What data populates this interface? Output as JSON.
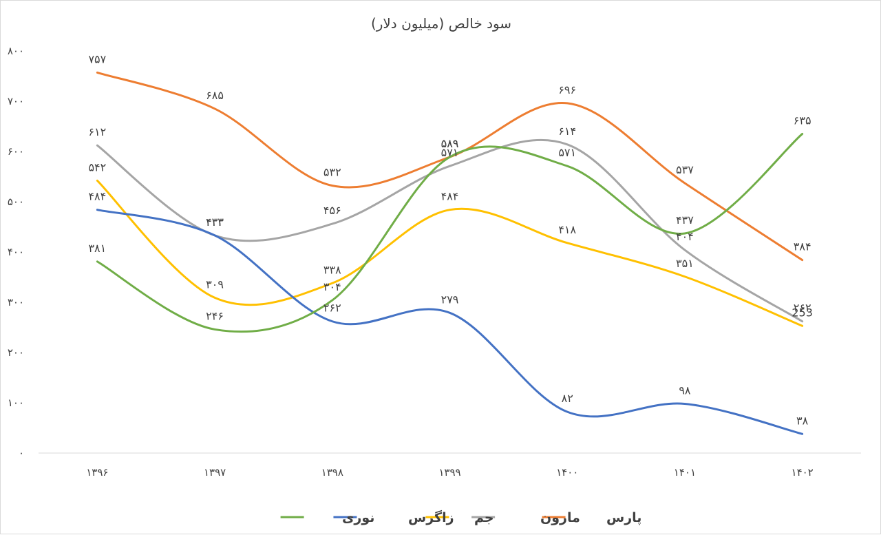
{
  "chart_data": {
    "type": "line",
    "title": "سود خالص (میلیون دلار)",
    "smooth": true,
    "categories": [
      "۱۳۹۶",
      "۱۳۹۷",
      "۱۳۹۸",
      "۱۳۹۹",
      "۱۴۰۰",
      "۱۴۰۱",
      "۱۴۰۲"
    ],
    "y_ticks": [
      "۰",
      "۱۰۰",
      "۲۰۰",
      "۳۰۰",
      "۴۰۰",
      "۵۰۰",
      "۶۰۰",
      "۷۰۰",
      "۸۰۰"
    ],
    "ylim": [
      0,
      800
    ],
    "grid": false,
    "legend_position": "bottom",
    "series": [
      {
        "name": "پارس",
        "color": "#ED7D31",
        "values": [
          757,
          685,
          532,
          589,
          696,
          537,
          384
        ],
        "labels": [
          "۷۵۷",
          "۶۸۵",
          "۵۳۲",
          "۵۸۹",
          "۶۹۶",
          "۵۳۷",
          "۳۸۴"
        ]
      },
      {
        "name": "مارون",
        "color": "#A5A5A5",
        "values": [
          612,
          433,
          456,
          571,
          614,
          404,
          262
        ],
        "labels": [
          "۶۱۲",
          "۴۳۳",
          "۴۵۶",
          "۵۷۱",
          "۶۱۴",
          "۴۰۴",
          "۲۶۲"
        ]
      },
      {
        "name": "جم",
        "color": "#FFC000",
        "values": [
          542,
          309,
          338,
          484,
          418,
          351,
          253
        ],
        "labels": [
          "۵۴۲",
          "۳۰۹",
          "۳۳۸",
          "۴۸۴",
          "۴۱۸",
          "۳۵۱",
          "253"
        ]
      },
      {
        "name": "زاگرس",
        "color": "#4472C4",
        "values": [
          484,
          433,
          262,
          279,
          82,
          98,
          38
        ],
        "labels": [
          "۴۸۴",
          "۴۳۳",
          "۲۶۲",
          "۲۷۹",
          "۸۲",
          "۹۸",
          "۳۸"
        ]
      },
      {
        "name": "نوری",
        "color": "#70AD47",
        "values": [
          381,
          246,
          304,
          589,
          571,
          437,
          635
        ],
        "labels": [
          "۳۸۱",
          "۲۴۶",
          "۳۰۴",
          "۵۸۹",
          "۵۷۱",
          "۴۳۷",
          "۶۳۵"
        ]
      }
    ]
  }
}
